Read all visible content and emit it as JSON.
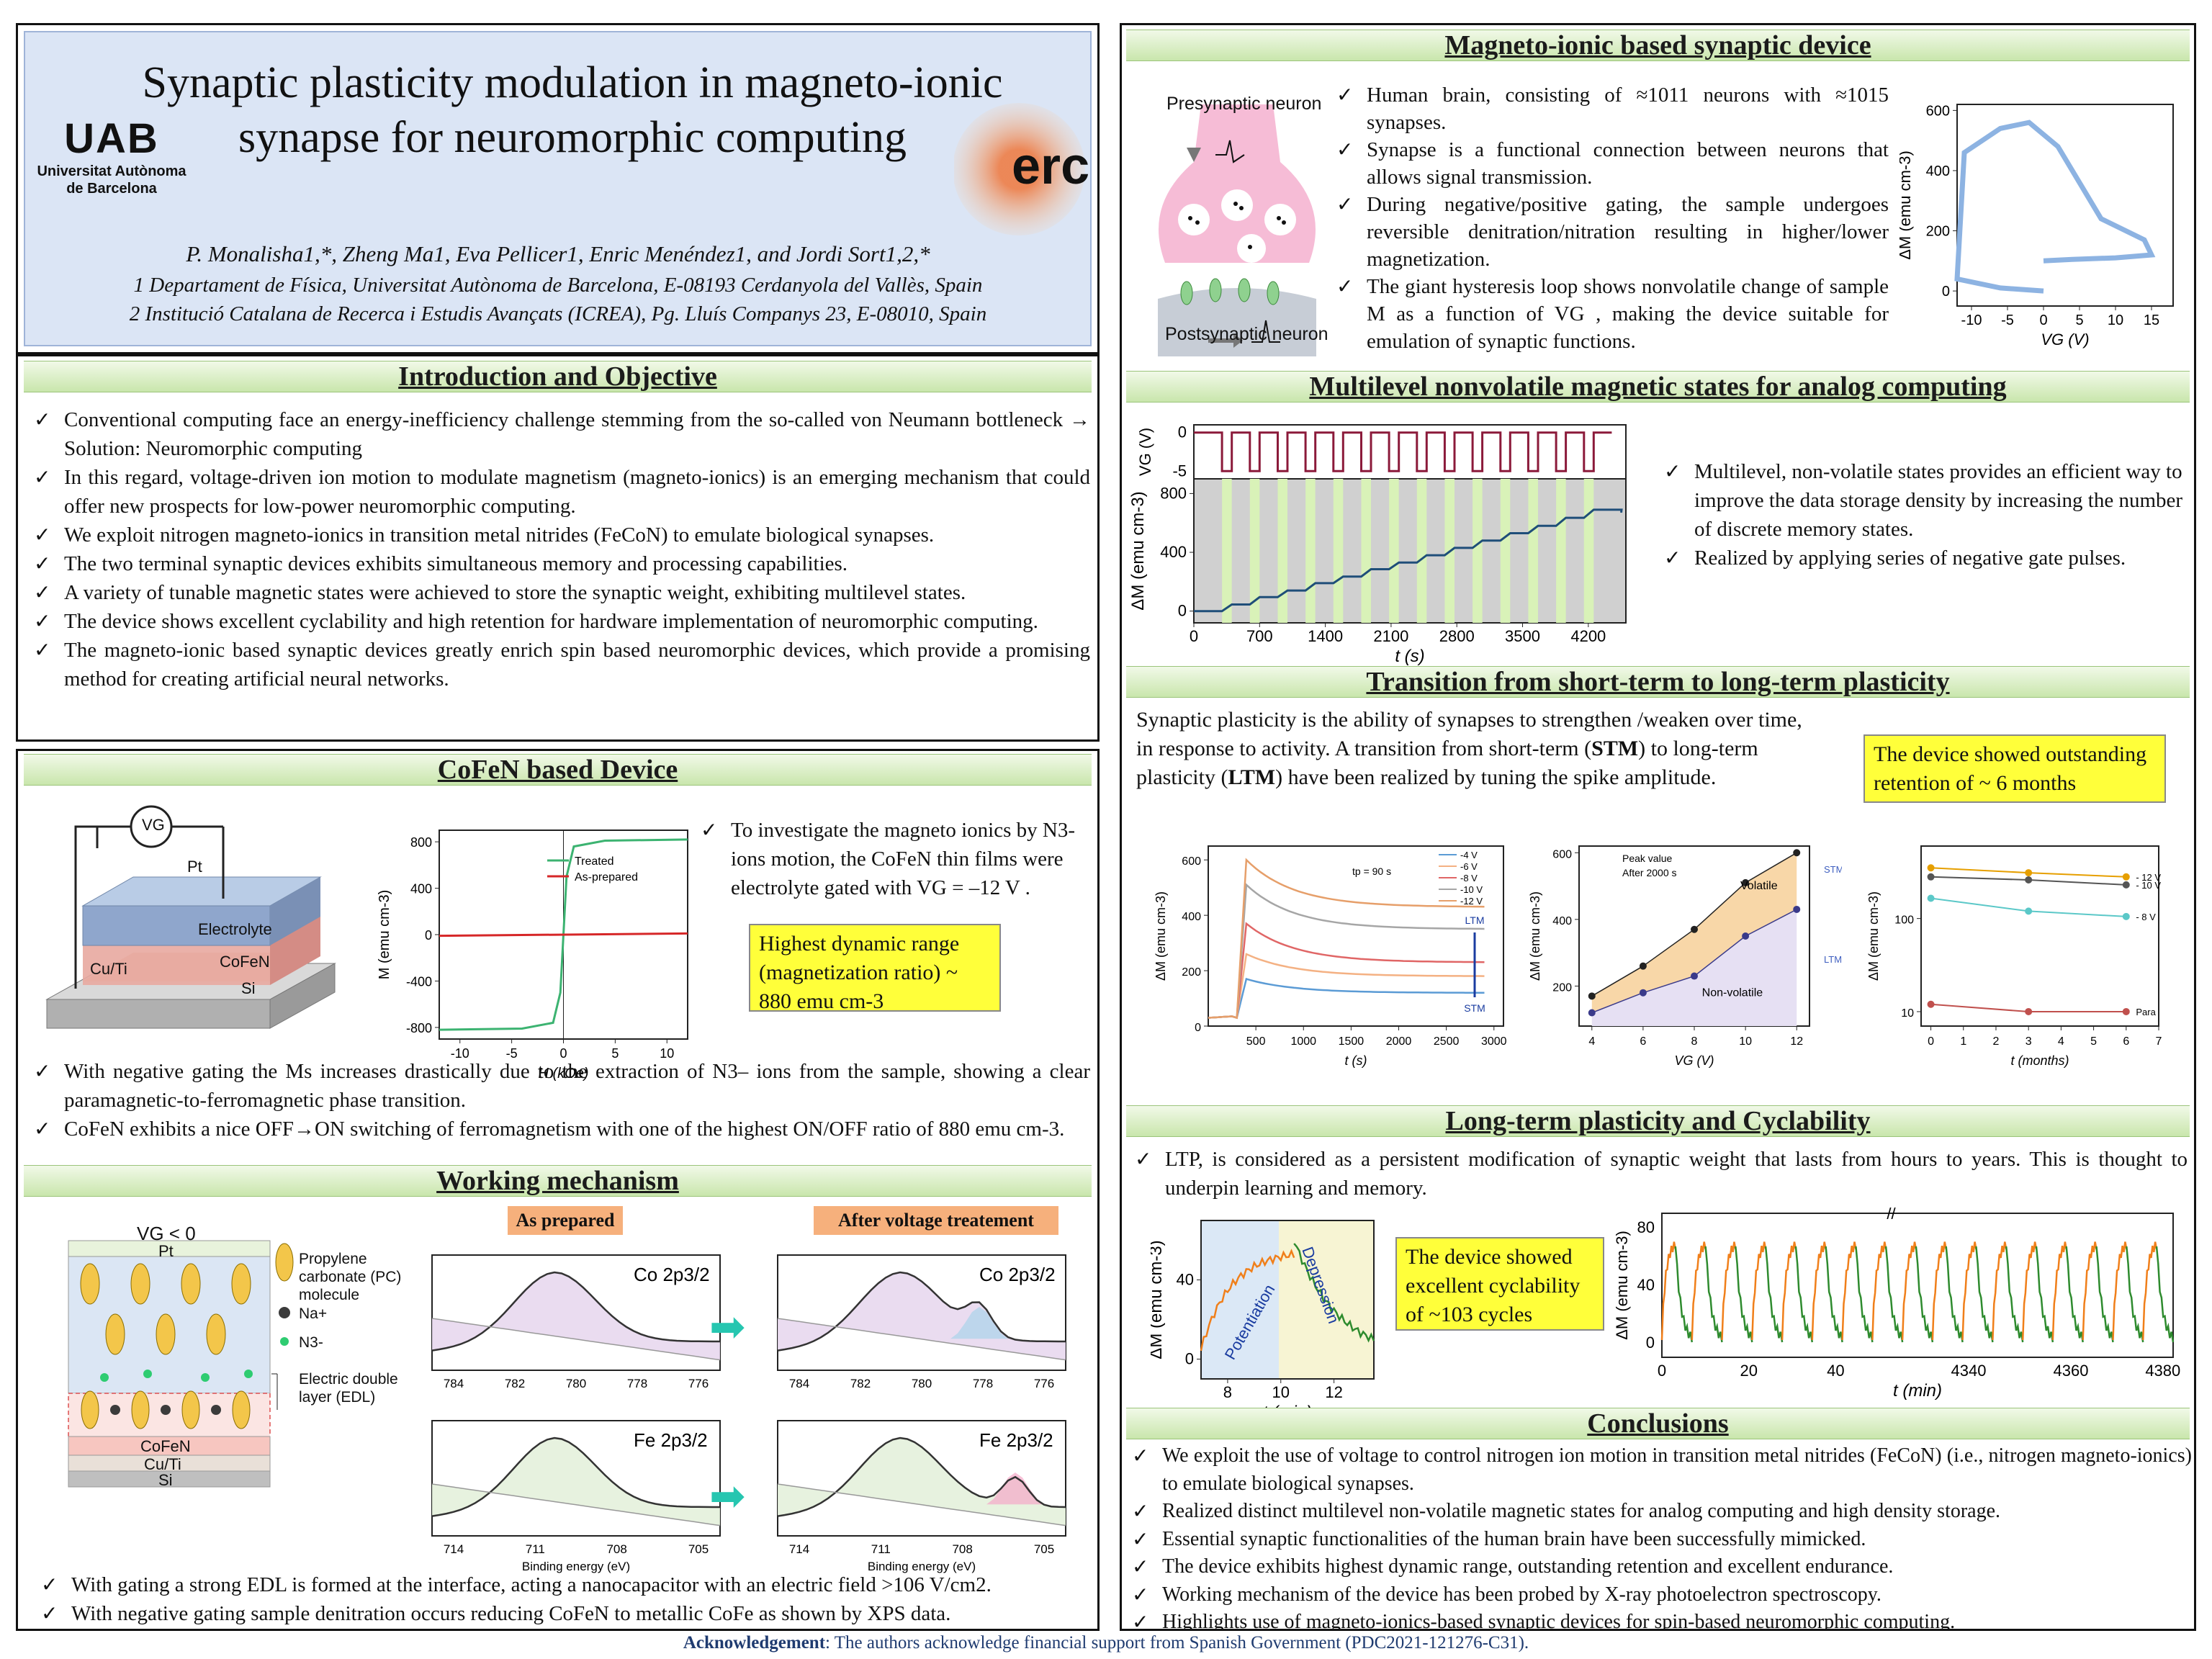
{
  "header": {
    "title_line1": "Synaptic plasticity modulation in magneto-ionic",
    "title_line2": "synapse for neuromorphic computing",
    "authors": "P. Monalisha1,*, Zheng Ma1, Eva Pellicer1, Enric Menéndez1, and Jordi Sort1,2,*",
    "aff1": "1 Departament de Física, Universitat Autònoma de Barcelona, E-08193 Cerdanyola del Vallès, Spain",
    "aff2": "2 Institució Catalana de Recerca i Estudis Avançats (ICREA), Pg. Lluís Companys 23, E-08010, Spain",
    "logo_uab": "UAB",
    "logo_uab_sub1": "Universitat Autònoma",
    "logo_uab_sub2": "de Barcelona",
    "logo_erc": "erc"
  },
  "intro": {
    "heading": "Introduction and Objective",
    "items": [
      "Conventional computing face an energy-inefficiency challenge stemming from the so-called von Neumann bottleneck → Solution: Neuromorphic computing",
      "In this regard, voltage-driven ion motion to modulate magnetism (magneto-ionics) is an emerging mechanism that could offer new prospects for low-power neuromorphic computing.",
      "We exploit nitrogen magneto-ionics in transition metal nitrides (FeCoN) to emulate biological synapses.",
      "The two terminal synaptic devices exhibits simultaneous memory and processing capabilities.",
      "A variety of tunable magnetic states were achieved to store the synaptic weight, exhibiting multilevel states.",
      "The device shows excellent cyclability and high retention for hardware implementation of neuromorphic computing.",
      "The magneto-ionic based synaptic devices greatly enrich spin based neuromorphic devices, which provide a promising method for creating artificial neural networks."
    ]
  },
  "cofen": {
    "heading": "CoFeN based Device",
    "layers": {
      "pt": "Pt",
      "electrolyte": "Electrolyte",
      "cofen": "CoFeN",
      "cuti": "Cu/Ti",
      "si": "Si",
      "vg": "VG"
    },
    "side_text": "To investigate the magneto ionics by N3- ions motion, the CoFeN thin films were electrolyte gated with VG = –12 V .",
    "highlight": "Highest dynamic range (magnetization ratio) ~ 880 emu cm-3",
    "items": [
      "With negative gating the Ms increases drastically due to the extraction of N3– ions from the sample, showing a clear paramagnetic-to-ferromagnetic phase transition.",
      "CoFeN exhibits a nice OFF→ON switching of ferromagnetism with one of the highest ON/OFF ratio of 880 emu cm-3."
    ]
  },
  "working": {
    "heading": "Working mechanism",
    "vg": "VG < 0",
    "pt": "Pt",
    "cofen": "CoFeN",
    "cuti": "Cu/Ti",
    "si": "Si",
    "legend_pc": "Propylene carbonate (PC) molecule",
    "legend_na": "Na+",
    "legend_n": "N3-",
    "legend_edl": "Electric double layer (EDL)",
    "tag_as": "As prepared",
    "tag_after": "After voltage treatement",
    "co_label": "Co 2p3/2",
    "fe_label": "Fe 2p3/2",
    "xlabel": "Binding energy (eV)",
    "co_ticks": [
      "784",
      "782",
      "780",
      "778",
      "776"
    ],
    "fe_ticks": [
      "714",
      "711",
      "708",
      "705"
    ],
    "items": [
      "With gating a strong EDL is formed at the interface, acting a nanocapacitor with an electric field >106 V/cm2.",
      "With negative gating sample denitration occurs reducing CoFeN to metallic CoFe as shown by XPS data."
    ]
  },
  "synaptic": {
    "heading": "Magneto-ionic based synaptic device",
    "pre": "Presynaptic neuron",
    "post": "Postsynaptic neuron",
    "items": [
      "Human brain, consisting of ≈1011 neurons with ≈1015 synapses.",
      "Synapse is a functional connection between neurons that allows signal transmission.",
      "During negative/positive gating, the sample undergoes reversible denitration/nitration resulting in higher/lower magnetization.",
      "The giant hysteresis loop shows nonvolatile change of sample M as a function of VG , making the device suitable for emulation of synaptic functions."
    ]
  },
  "multilevel": {
    "heading": "Multilevel nonvolatile magnetic states for analog computing",
    "items": [
      "Multilevel, non-volatile states provides an efficient way to improve the data storage density by increasing the number of discrete memory states.",
      "Realized by applying series of negative gate pulses."
    ]
  },
  "stm": {
    "heading": "Transition from short-term to long-term plasticity",
    "para_a": "Synaptic plasticity is the ability of synapses to strengthen /weaken over time, in response to activity. A transition from short-term (",
    "para_stm": "STM",
    "para_b": ") to long-term plasticity (",
    "para_ltm": "LTM",
    "para_c": ") have been realized by tuning the spike amplitude.",
    "highlight": "The device showed outstanding retention of ~ 6 months"
  },
  "ltp": {
    "heading": "Long-term plasticity and Cyclability",
    "item": "LTP, is considered as a persistent modification of synaptic weight that lasts from hours to years. This is thought to underpin learning and memory.",
    "highlight": "The device showed excellent cyclability of ~103 cycles"
  },
  "conclusions": {
    "heading": "Conclusions",
    "items": [
      "We exploit the use of voltage to control nitrogen ion motion in transition metal nitrides (FeCoN) (i.e., nitrogen magneto-ionics) to emulate biological synapses.",
      "Realized distinct multilevel non-volatile magnetic states for analog computing and high density storage.",
      "Essential synaptic functionalities of the human brain have been successfully mimicked.",
      "The device exhibits highest dynamic range, outstanding retention and excellent endurance.",
      "Working mechanism of the device has been probed by X-ray photoelectron spectroscopy.",
      "Highlights use of magneto-ionics-based synaptic devices for spin-based neuromorphic computing."
    ]
  },
  "ack": {
    "label": "Acknowledgement",
    "text": ": The authors acknowledge financial support from Spanish Government (PDC2021-121276-C31)."
  },
  "chart_data": [
    {
      "id": "mh_loop",
      "type": "line",
      "xlabel": "H (kOe)",
      "ylabel": "M (emu cm-3)",
      "xlim": [
        -12,
        12
      ],
      "ylim": [
        -900,
        900
      ],
      "xticks": [
        -10,
        -5,
        0,
        5,
        10
      ],
      "yticks": [
        -800,
        -400,
        0,
        400,
        800
      ],
      "series": [
        {
          "name": "Treated",
          "color": "#3cb371",
          "x": [
            -12,
            -4,
            -1,
            -0.3,
            0,
            0.3,
            1,
            4,
            12
          ],
          "y": [
            -820,
            -810,
            -760,
            -500,
            0,
            500,
            760,
            810,
            820
          ]
        },
        {
          "name": "As-prepared",
          "color": "#d62728",
          "x": [
            -12,
            12
          ],
          "y": [
            -10,
            10
          ]
        }
      ]
    },
    {
      "id": "hysteresis",
      "type": "line",
      "xlabel": "VG (V)",
      "ylabel": "ΔM (emu cm-3)",
      "xlim": [
        -12,
        18
      ],
      "ylim": [
        -50,
        620
      ],
      "xticks": [
        -10,
        -5,
        0,
        5,
        10,
        15
      ],
      "yticks": [
        0,
        200,
        400,
        600
      ],
      "series": [
        {
          "color": "#8db3e2",
          "x": [
            0,
            -6,
            -12,
            -11,
            -6,
            -2,
            2,
            8,
            14,
            15,
            10,
            4,
            0
          ],
          "y": [
            0,
            10,
            40,
            460,
            540,
            560,
            480,
            240,
            170,
            120,
            110,
            105,
            100
          ]
        }
      ]
    },
    {
      "id": "multilevel_vg",
      "type": "line",
      "ylabel": "VG (V)",
      "ylim": [
        -6,
        1
      ],
      "yticks": [
        0,
        -5
      ],
      "pulses": 14,
      "low": -5,
      "high": 0
    },
    {
      "id": "multilevel_dm",
      "type": "line",
      "xlabel": "t (s)",
      "ylabel": "ΔM (emu cm-3)",
      "xlim": [
        0,
        4600
      ],
      "ylim": [
        -80,
        900
      ],
      "xticks": [
        0,
        700,
        1400,
        2100,
        2800,
        3500,
        4200
      ],
      "yticks": [
        0,
        400,
        800
      ],
      "steps": [
        0,
        45,
        95,
        140,
        190,
        235,
        285,
        330,
        380,
        430,
        480,
        530,
        580,
        635,
        690
      ]
    },
    {
      "id": "stm_decay",
      "type": "line",
      "xlabel": "t (s)",
      "ylabel": "ΔM (emu cm-3)",
      "xlim": [
        0,
        3100
      ],
      "ylim": [
        0,
        650
      ],
      "xticks": [
        500,
        1000,
        1500,
        2000,
        2500,
        3000
      ],
      "yticks": [
        0,
        200,
        400,
        600
      ],
      "annotation": "tp = 90 s",
      "arrow_top": "LTM",
      "arrow_bottom": "STM",
      "series": [
        {
          "name": "-4 V",
          "color": "#5b9bd5",
          "peak": 170,
          "end": 120
        },
        {
          "name": "-6 V",
          "color": "#f4b183",
          "peak": 260,
          "end": 180
        },
        {
          "name": "-8 V",
          "color": "#e06666",
          "peak": 370,
          "end": 230
        },
        {
          "name": "-10 V",
          "color": "#a6a6a6",
          "peak": 510,
          "end": 350
        },
        {
          "name": "-12 V",
          "color": "#e69f6a",
          "peak": 600,
          "end": 430
        }
      ]
    },
    {
      "id": "peak_vs_vg",
      "type": "scatter",
      "xlabel": "VG (V)",
      "ylabel": "ΔM (emu cm-3)",
      "xlim": [
        3.5,
        12.5
      ],
      "ylim": [
        80,
        620
      ],
      "xticks": [
        4,
        6,
        8,
        10,
        12
      ],
      "yticks": [
        200,
        400,
        600
      ],
      "labels": {
        "volatile": "Volatile",
        "nonvolatile": "Non-volatile",
        "stm": "STM",
        "ltm": "LTM"
      },
      "series": [
        {
          "name": "Peak value",
          "x": [
            4,
            6,
            8,
            10,
            12
          ],
          "y": [
            170,
            260,
            370,
            510,
            600
          ]
        },
        {
          "name": "After 2000 s",
          "x": [
            4,
            6,
            8,
            10,
            12
          ],
          "y": [
            120,
            180,
            230,
            350,
            430
          ]
        }
      ]
    },
    {
      "id": "retention",
      "type": "scatter",
      "xlabel": "t (months)",
      "ylabel": "ΔM (emu cm-3)",
      "xlim": [
        -0.3,
        7
      ],
      "ylim_log": [
        7,
        600
      ],
      "log_y": true,
      "xticks": [
        0,
        1,
        2,
        3,
        4,
        5,
        6,
        7
      ],
      "yticks": [
        10,
        100
      ],
      "series": [
        {
          "name": "- 12 V",
          "color": "#e69f00",
          "x": [
            0,
            3,
            6
          ],
          "y": [
            350,
            310,
            280
          ]
        },
        {
          "name": "- 10 V",
          "color": "#555555",
          "x": [
            0,
            3,
            6
          ],
          "y": [
            280,
            260,
            230
          ]
        },
        {
          "name": "- 8 V",
          "color": "#5bc8c8",
          "x": [
            0,
            3,
            6
          ],
          "y": [
            165,
            120,
            105
          ]
        },
        {
          "name": "Para",
          "color": "#c0504d",
          "x": [
            0,
            3,
            6
          ],
          "y": [
            12,
            10,
            10
          ]
        }
      ]
    },
    {
      "id": "ltp_single",
      "type": "line",
      "xlabel": "t (min)",
      "ylabel": "ΔM (emu cm-3)",
      "xlim": [
        7,
        13.5
      ],
      "ylim": [
        -10,
        70
      ],
      "xticks": [
        8,
        10,
        12
      ],
      "yticks": [
        0,
        40
      ],
      "region1": "Potentiation",
      "region2": "Depression"
    },
    {
      "id": "cycles",
      "type": "line",
      "xlabel": "t (min)",
      "ylabel": "ΔM (emu cm-3)",
      "ylim": [
        -10,
        90
      ],
      "xticks": [
        "0",
        "20",
        "40",
        "4340",
        "4360",
        "4380"
      ],
      "yticks": [
        0,
        40,
        80
      ],
      "cycles": 17
    }
  ]
}
